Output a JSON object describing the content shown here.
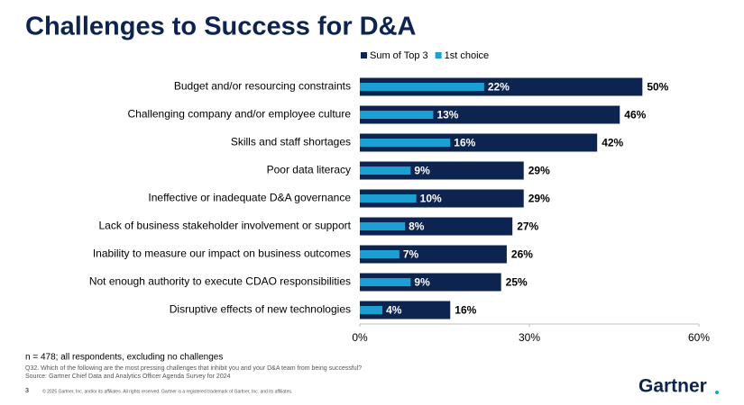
{
  "chart_data": {
    "type": "bar",
    "orientation": "horizontal",
    "title": "Challenges to Success for D&A",
    "categories": [
      "Budget and/or resourcing constraints",
      "Challenging company and/or employee culture",
      "Skills and staff shortages",
      "Poor data literacy",
      "Ineffective or inadequate D&A governance",
      "Lack of business stakeholder involvement or support",
      "Inability to measure our impact on business outcomes",
      "Not enough authority to execute CDAO responsibilities",
      "Disruptive effects of new technologies"
    ],
    "series": [
      {
        "name": "Sum of Top 3",
        "color": "#0d2451",
        "values": [
          50,
          46,
          42,
          29,
          29,
          27,
          26,
          25,
          16
        ],
        "value_labels": [
          "50%",
          "46%",
          "42%",
          "29%",
          "29%",
          "27%",
          "26%",
          "25%",
          "16%"
        ]
      },
      {
        "name": "1st choice",
        "color": "#1c9fd3",
        "values": [
          22,
          13,
          16,
          9,
          10,
          8,
          7,
          9,
          4
        ],
        "value_labels": [
          "22%",
          "13%",
          "16%",
          "9%",
          "10%",
          "8%",
          "7%",
          "9%",
          "4%"
        ]
      }
    ],
    "xlim": [
      0,
      60
    ],
    "xticks": [
      {
        "value": 0,
        "label": "0%"
      },
      {
        "value": 30,
        "label": "30%"
      },
      {
        "value": 60,
        "label": "60%"
      }
    ],
    "grid": false,
    "legend": "top",
    "note": "n = 478; all respondents, excluding no challenges",
    "question": "Q32. Which of the following are the most pressing challenges that inhibit you and your D&A team from being successful?",
    "source": "Source: Gartner Chief Data and Analytics Officer Agenda Survey for 2024",
    "page_number": "3",
    "copyright": "© 2025 Gartner, Inc. and/or its affiliates. All rights reserved. Gartner is a registered trademark of Gartner, Inc. and its affiliates.",
    "logo": "Gartner"
  }
}
